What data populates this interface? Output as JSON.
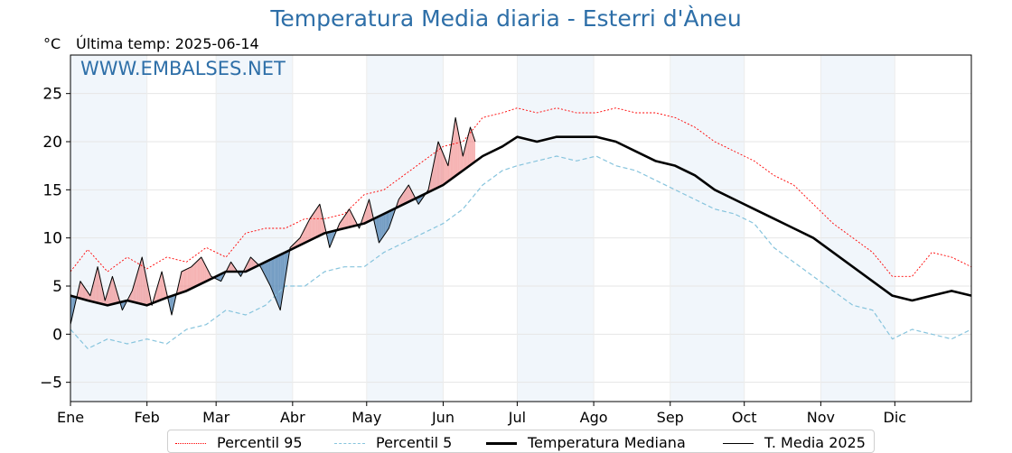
{
  "header": {
    "title": "Temperatura Media diaria - Esterri d'Àneu",
    "unit": "°C",
    "last_temp": "Última temp: 2025-06-14",
    "watermark": "WWW.EMBALSES.NET"
  },
  "legend": [
    {
      "label": "Percentil 95",
      "color": "#ff0000",
      "style": "dotted"
    },
    {
      "label": "Percentil 5",
      "color": "#87c4dd",
      "style": "dashed"
    },
    {
      "label": "Temperatura Mediana",
      "color": "#000000",
      "style": "thick"
    },
    {
      "label": "T. Media 2025",
      "color": "#000000",
      "style": "thin"
    }
  ],
  "chart_data": {
    "type": "line",
    "title": "Temperatura Media diaria - Esterri d'Àneu",
    "ylabel": "°C",
    "ylim": [
      -7,
      29
    ],
    "yticks": [
      -5,
      0,
      5,
      10,
      15,
      20,
      25
    ],
    "xlim": [
      1,
      366
    ],
    "months": [
      "Ene",
      "Feb",
      "Mar",
      "Abr",
      "May",
      "Jun",
      "Jul",
      "Ago",
      "Sep",
      "Oct",
      "Nov",
      "Dic"
    ],
    "month_start_day": [
      1,
      32,
      60,
      91,
      121,
      152,
      182,
      213,
      244,
      274,
      305,
      335
    ],
    "grid": true,
    "legend_position": "bottom",
    "colors": {
      "above": "#f08080",
      "below": "#4a7fb0",
      "p95": "#ff0000",
      "p5": "#87c4dd",
      "band": "#f1f6fb"
    },
    "series": [
      {
        "name": "Percentil 95",
        "x": [
          1,
          8,
          16,
          24,
          32,
          40,
          48,
          56,
          64,
          72,
          80,
          88,
          96,
          104,
          112,
          120,
          128,
          136,
          144,
          152,
          160,
          168,
          176,
          182,
          190,
          198,
          206,
          214,
          222,
          230,
          238,
          246,
          254,
          262,
          270,
          278,
          286,
          294,
          302,
          310,
          318,
          326,
          334,
          342,
          350,
          358,
          366
        ],
        "y": [
          6.5,
          8.8,
          6.5,
          8.0,
          6.8,
          8.0,
          7.5,
          9.0,
          8.0,
          10.5,
          11.0,
          11.0,
          12.0,
          12.0,
          12.5,
          14.5,
          15.0,
          16.5,
          18.0,
          19.5,
          20.0,
          22.5,
          23.0,
          23.5,
          23.0,
          23.5,
          23.0,
          23.0,
          23.5,
          23.0,
          23.0,
          22.5,
          21.5,
          20.0,
          19.0,
          18.0,
          16.5,
          15.5,
          13.5,
          11.5,
          10.0,
          8.5,
          6.0,
          6.0,
          8.5,
          8.0,
          7.0
        ]
      },
      {
        "name": "Percentil 5",
        "x": [
          1,
          8,
          16,
          24,
          32,
          40,
          48,
          56,
          64,
          72,
          80,
          88,
          96,
          104,
          112,
          120,
          128,
          136,
          144,
          152,
          160,
          168,
          176,
          182,
          190,
          198,
          206,
          214,
          222,
          230,
          238,
          246,
          254,
          262,
          270,
          278,
          286,
          294,
          302,
          310,
          318,
          326,
          334,
          342,
          350,
          358,
          366
        ],
        "y": [
          0.5,
          -1.5,
          -0.5,
          -1.0,
          -0.5,
          -1.0,
          0.5,
          1.0,
          2.5,
          2.0,
          3.0,
          5.0,
          5.0,
          6.5,
          7.0,
          7.0,
          8.5,
          9.5,
          10.5,
          11.5,
          13.0,
          15.5,
          17.0,
          17.5,
          18.0,
          18.5,
          18.0,
          18.5,
          17.5,
          17.0,
          16.0,
          15.0,
          14.0,
          13.0,
          12.5,
          11.5,
          9.0,
          7.5,
          6.0,
          4.5,
          3.0,
          2.5,
          -0.5,
          0.5,
          0.0,
          -0.5,
          0.5
        ]
      },
      {
        "name": "Temperatura Mediana",
        "x": [
          1,
          8,
          16,
          24,
          32,
          40,
          48,
          56,
          64,
          72,
          80,
          88,
          96,
          104,
          112,
          120,
          128,
          136,
          144,
          152,
          160,
          168,
          176,
          182,
          190,
          198,
          206,
          214,
          222,
          230,
          238,
          246,
          254,
          262,
          270,
          278,
          286,
          294,
          302,
          310,
          318,
          326,
          334,
          342,
          350,
          358,
          366
        ],
        "y": [
          4.0,
          3.5,
          3.0,
          3.5,
          3.0,
          3.8,
          4.5,
          5.5,
          6.5,
          6.5,
          7.5,
          8.5,
          9.5,
          10.5,
          11.0,
          11.5,
          12.5,
          13.5,
          14.5,
          15.5,
          17.0,
          18.5,
          19.5,
          20.5,
          20.0,
          20.5,
          20.5,
          20.5,
          20.0,
          19.0,
          18.0,
          17.5,
          16.5,
          15.0,
          14.0,
          13.0,
          12.0,
          11.0,
          10.0,
          8.5,
          7.0,
          5.5,
          4.0,
          3.5,
          4.0,
          4.5,
          4.0
        ]
      },
      {
        "name": "T. Media 2025",
        "x": [
          1,
          5,
          9,
          12,
          15,
          18,
          22,
          26,
          30,
          34,
          38,
          42,
          46,
          50,
          54,
          58,
          62,
          66,
          70,
          74,
          78,
          82,
          86,
          90,
          94,
          98,
          102,
          106,
          110,
          114,
          118,
          122,
          126,
          130,
          134,
          138,
          142,
          146,
          150,
          154,
          157,
          160,
          163,
          165
        ],
        "y": [
          1.0,
          5.5,
          4.0,
          7.0,
          3.5,
          6.0,
          2.5,
          4.5,
          8.0,
          3.0,
          6.5,
          2.0,
          6.5,
          7.0,
          8.0,
          6.0,
          5.5,
          7.5,
          6.0,
          8.0,
          7.0,
          5.0,
          2.5,
          9.0,
          10.0,
          12.0,
          13.5,
          9.0,
          11.5,
          13.0,
          11.0,
          14.0,
          9.5,
          11.0,
          14.0,
          15.5,
          13.5,
          15.0,
          20.0,
          17.5,
          22.5,
          18.5,
          21.5,
          20.0
        ]
      }
    ]
  }
}
